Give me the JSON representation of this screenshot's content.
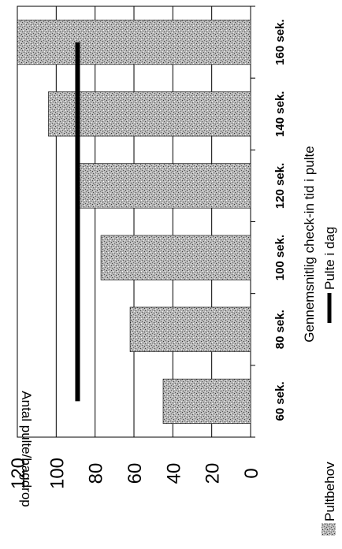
{
  "chart_data": {
    "type": "bar",
    "orientation": "rotated-90-ccw",
    "categories": [
      "60 sek.",
      "80 sek.",
      "100 sek.",
      "120 sek.",
      "140 sek.",
      "160 sek."
    ],
    "series": [
      {
        "name": "Pultbehov",
        "kind": "bar",
        "values": [
          45,
          62,
          77,
          88,
          104,
          120
        ],
        "color": "#8c8c8c"
      },
      {
        "name": "Pulte i dag",
        "kind": "line",
        "values": [
          89,
          89,
          89,
          89,
          89,
          89
        ],
        "color": "#000000"
      }
    ],
    "ylabel": "Antal pulte/bagdrop",
    "xlabel": "Gennemsnitlig check-in tid i pulte",
    "ylim": [
      0,
      120
    ],
    "yticks": [
      0,
      20,
      40,
      60,
      80,
      100,
      120
    ],
    "grid": true,
    "legend": "bottom"
  }
}
